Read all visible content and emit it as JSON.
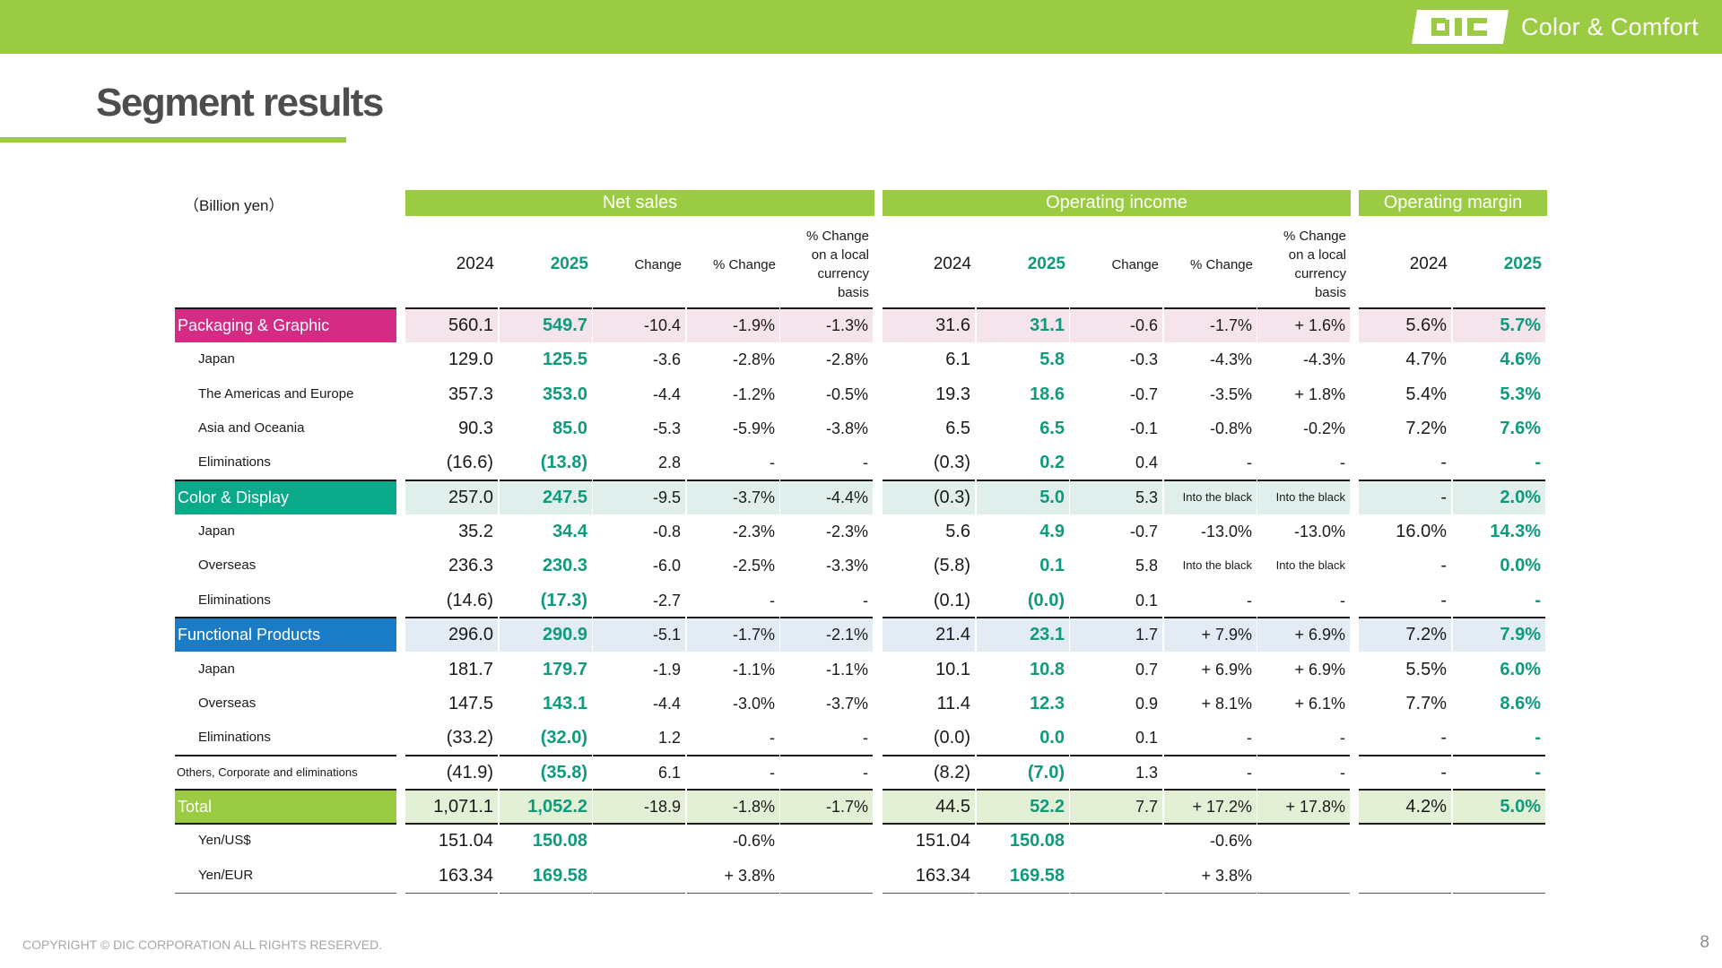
{
  "header": {
    "logo_text": "Color & Comfort",
    "brand_color": "#9bcb43"
  },
  "page": {
    "title": "Segment results",
    "unit": "（Billion yen）",
    "copyright": "COPYRIGHT © DIC CORPORATION ALL RIGHTS RESERVED.",
    "page_number": "8"
  },
  "colors": {
    "accent_green": "#9bcb43",
    "current_year_text": "#0e9a7d",
    "packaging": "#d52b85",
    "packaging_bg": "#f5e4ec",
    "color_display": "#0aa98a",
    "color_display_bg": "#e1efec",
    "functional": "#1a7bc6",
    "functional_bg": "#e3ecf5",
    "total": "#9bcb43",
    "total_bg": "#e4f0d6"
  },
  "table": {
    "groups": [
      "Net sales",
      "Operating income",
      "Operating margin"
    ],
    "subheaders": [
      "2024",
      "2025",
      "Change",
      "% Change",
      "% Change\non a local\ncurrency\nbasis",
      "2024",
      "2025",
      "Change",
      "% Change",
      "% Change\non a local\ncurrency\nbasis",
      "2024",
      "2025"
    ],
    "rows": [
      {
        "label": "Packaging & Graphic",
        "kind": "seg",
        "color": "packaging",
        "values": [
          "560.1",
          "549.7",
          "-10.4",
          "-1.9%",
          "-1.3%",
          "31.6",
          "31.1",
          "-0.6",
          "-1.7%",
          "+ 1.6%",
          "5.6%",
          "5.7%"
        ]
      },
      {
        "label": "Japan",
        "kind": "sub",
        "values": [
          "129.0",
          "125.5",
          "-3.6",
          "-2.8%",
          "-2.8%",
          "6.1",
          "5.8",
          "-0.3",
          "-4.3%",
          "-4.3%",
          "4.7%",
          "4.6%"
        ]
      },
      {
        "label": "The Americas and Europe",
        "kind": "sub",
        "values": [
          "357.3",
          "353.0",
          "-4.4",
          "-1.2%",
          "-0.5%",
          "19.3",
          "18.6",
          "-0.7",
          "-3.5%",
          "+ 1.8%",
          "5.4%",
          "5.3%"
        ]
      },
      {
        "label": "Asia and Oceania",
        "kind": "sub",
        "values": [
          "90.3",
          "85.0",
          "-5.3",
          "-5.9%",
          "-3.8%",
          "6.5",
          "6.5",
          "-0.1",
          "-0.8%",
          "-0.2%",
          "7.2%",
          "7.6%"
        ]
      },
      {
        "label": "Eliminations",
        "kind": "sub",
        "values": [
          "(16.6)",
          "(13.8)",
          "2.8",
          "-",
          "-",
          "(0.3)",
          "0.2",
          "0.4",
          "-",
          "-",
          "-",
          "-"
        ]
      },
      {
        "label": "Color & Display",
        "kind": "seg",
        "color": "color_display",
        "values": [
          "257.0",
          "247.5",
          "-9.5",
          "-3.7%",
          "-4.4%",
          "(0.3)",
          "5.0",
          "5.3",
          "Into the black",
          "Into the black",
          "-",
          "2.0%"
        ]
      },
      {
        "label": "Japan",
        "kind": "sub",
        "values": [
          "35.2",
          "34.4",
          "-0.8",
          "-2.3%",
          "-2.3%",
          "5.6",
          "4.9",
          "-0.7",
          "-13.0%",
          "-13.0%",
          "16.0%",
          "14.3%"
        ]
      },
      {
        "label": "Overseas",
        "kind": "sub",
        "values": [
          "236.3",
          "230.3",
          "-6.0",
          "-2.5%",
          "-3.3%",
          "(5.8)",
          "0.1",
          "5.8",
          "Into the black",
          "Into the black",
          "-",
          "0.0%"
        ]
      },
      {
        "label": "Eliminations",
        "kind": "sub",
        "values": [
          "(14.6)",
          "(17.3)",
          "-2.7",
          "-",
          "-",
          "(0.1)",
          "(0.0)",
          "0.1",
          "-",
          "-",
          "-",
          "-"
        ]
      },
      {
        "label": "Functional Products",
        "kind": "seg",
        "color": "functional",
        "values": [
          "296.0",
          "290.9",
          "-5.1",
          "-1.7%",
          "-2.1%",
          "21.4",
          "23.1",
          "1.7",
          "+ 7.9%",
          "+ 6.9%",
          "7.2%",
          "7.9%"
        ]
      },
      {
        "label": "Japan",
        "kind": "sub",
        "values": [
          "181.7",
          "179.7",
          "-1.9",
          "-1.1%",
          "-1.1%",
          "10.1",
          "10.8",
          "0.7",
          "+ 6.9%",
          "+ 6.9%",
          "5.5%",
          "6.0%"
        ]
      },
      {
        "label": "Overseas",
        "kind": "sub",
        "values": [
          "147.5",
          "143.1",
          "-4.4",
          "-3.0%",
          "-3.7%",
          "11.4",
          "12.3",
          "0.9",
          "+ 8.1%",
          "+ 6.1%",
          "7.7%",
          "8.6%"
        ]
      },
      {
        "label": "Eliminations",
        "kind": "sub",
        "values": [
          "(33.2)",
          "(32.0)",
          "1.2",
          "-",
          "-",
          "(0.0)",
          "0.0",
          "0.1",
          "-",
          "-",
          "-",
          "-"
        ]
      },
      {
        "label": "Others, Corporate and eliminations",
        "kind": "oth",
        "values": [
          "(41.9)",
          "(35.8)",
          "6.1",
          "-",
          "-",
          "(8.2)",
          "(7.0)",
          "1.3",
          "-",
          "-",
          "-",
          "-"
        ]
      },
      {
        "label": "Total",
        "kind": "seg",
        "color": "total",
        "values": [
          "1,071.1",
          "1,052.2",
          "-18.9",
          "-1.8%",
          "-1.7%",
          "44.5",
          "52.2",
          "7.7",
          "+ 17.2%",
          "+ 17.8%",
          "4.2%",
          "5.0%"
        ]
      },
      {
        "label": "Yen/US$",
        "kind": "sub",
        "values": [
          "151.04",
          "150.08",
          "",
          "-0.6%",
          "",
          "151.04",
          "150.08",
          "",
          "-0.6%",
          "",
          "",
          ""
        ]
      },
      {
        "label": "Yen/EUR",
        "kind": "sub",
        "values": [
          "163.34",
          "169.58",
          "",
          "+ 3.8%",
          "",
          "163.34",
          "169.58",
          "",
          "+ 3.8%",
          "",
          "",
          ""
        ]
      }
    ]
  }
}
